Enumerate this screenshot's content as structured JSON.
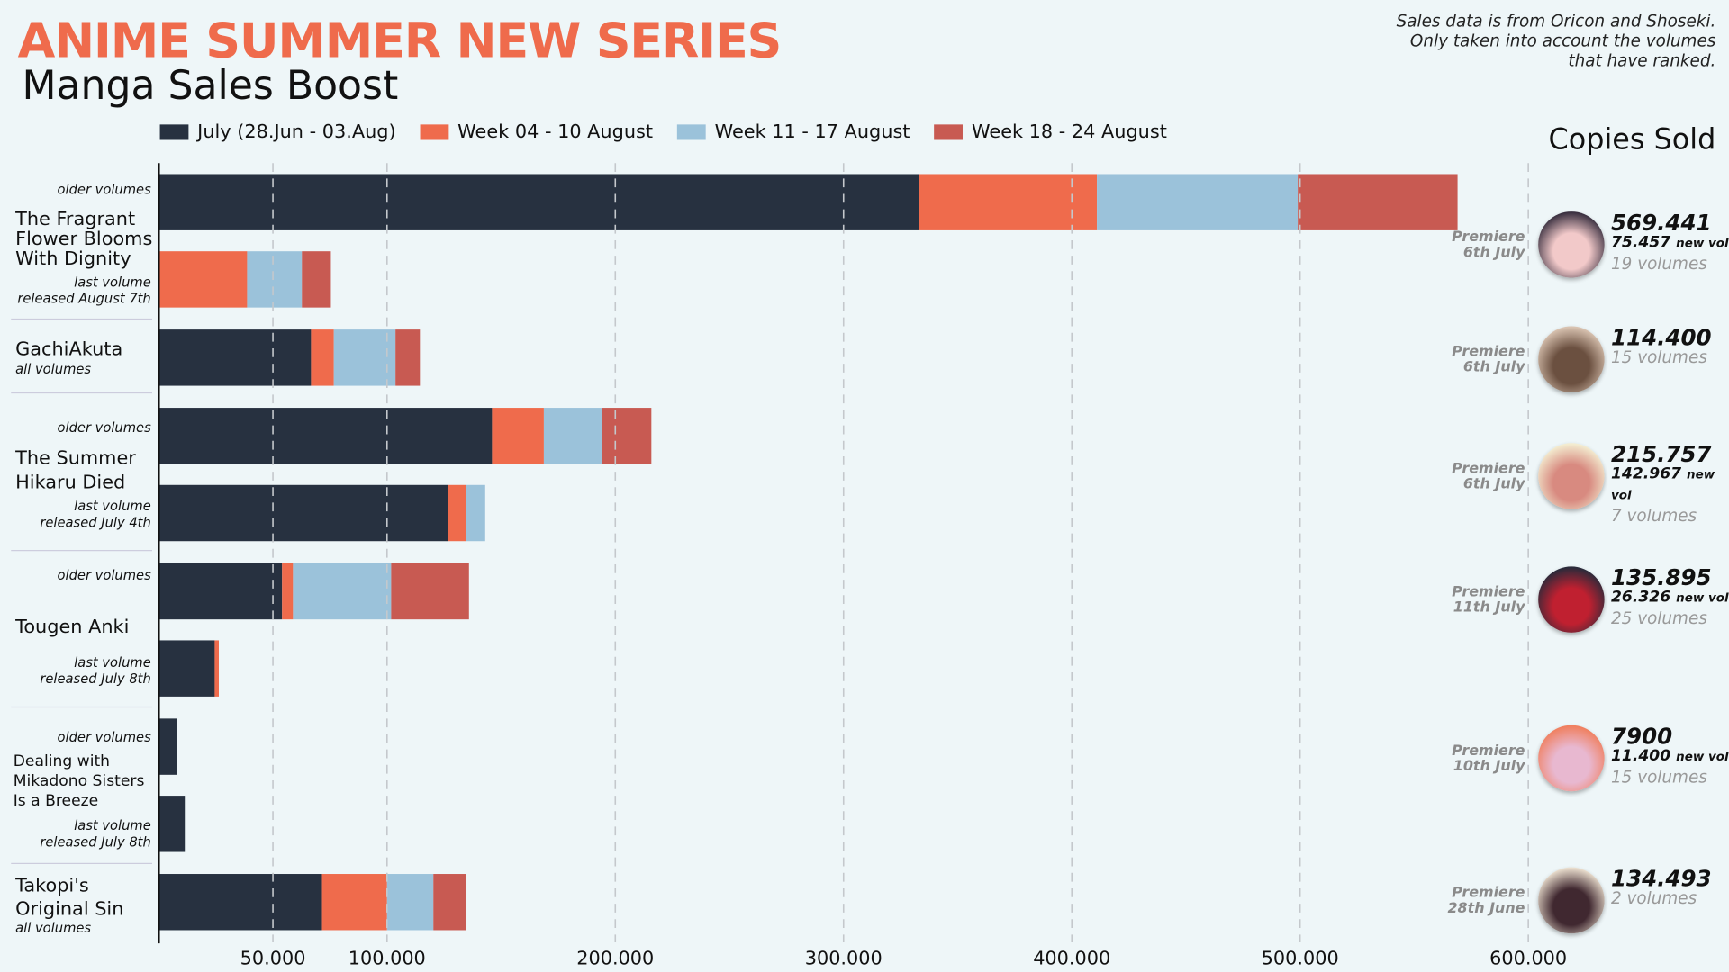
{
  "title": "ANIME SUMMER NEW SERIES",
  "subtitle": "Manga Sales Boost",
  "note": [
    "Sales data is from Oricon and Shoseki.",
    "Only taken into account the volumes",
    "that have ranked."
  ],
  "copies_title": "Copies Sold",
  "new_vol_label": "new vol",
  "chart_data": {
    "type": "bar",
    "orientation": "horizontal",
    "stacked": true,
    "xlim": [
      0,
      600000
    ],
    "ticks": [
      50000,
      100000,
      200000,
      300000,
      400000,
      500000,
      600000
    ],
    "tick_labels": [
      "50.000",
      "100.000",
      "200.000",
      "300.000",
      "400.000",
      "500.000",
      "600.000"
    ],
    "legend": [
      {
        "name": "July (28.Jun - 03.Aug)",
        "color": "#273140"
      },
      {
        "name": "Week 04 - 10 August",
        "color": "#ef6b4c"
      },
      {
        "name": "Week 11 - 17 August",
        "color": "#9bc2da"
      },
      {
        "name": "Week 18 - 24 August",
        "color": "#c85a52"
      }
    ],
    "bars": [
      {
        "series": "The Fragrant Flower Blooms With Dignity",
        "label": "older volumes",
        "values": [
          333000,
          78000,
          88000,
          70000
        ]
      },
      {
        "series": "The Fragrant Flower Blooms With Dignity",
        "label": "last volume released August 7th",
        "values": [
          0,
          38700,
          24000,
          12700
        ]
      },
      {
        "series": "GachiAkuta",
        "label": "all volumes",
        "values": [
          66700,
          10000,
          27000,
          10700
        ]
      },
      {
        "series": "The Summer Hikaru Died",
        "label": "older volumes",
        "values": [
          146000,
          22700,
          25600,
          21500
        ]
      },
      {
        "series": "The Summer Hikaru Died",
        "label": "last volume released July 4th",
        "values": [
          126600,
          8200,
          8200,
          0
        ]
      },
      {
        "series": "Tougen Anki",
        "label": "older volumes",
        "values": [
          54000,
          4800,
          43000,
          34100
        ]
      },
      {
        "series": "Tougen Anki",
        "label": "last volume released July 8th",
        "values": [
          24500,
          1800,
          0,
          0
        ]
      },
      {
        "series": "Dealing with Mikadono Sisters Is a Breeze",
        "label": "older volumes",
        "values": [
          7900,
          0,
          0,
          0
        ]
      },
      {
        "series": "Dealing with Mikadono Sisters Is a Breeze",
        "label": "last volume released July 8th",
        "values": [
          11400,
          0,
          0,
          0
        ]
      },
      {
        "series": "Takopi's Original Sin",
        "label": "all volumes",
        "values": [
          71500,
          28500,
          20300,
          14200
        ]
      }
    ]
  },
  "rows": [
    {
      "name": "The Fragrant Flower Blooms With Dignity",
      "premiere": [
        "Premiere",
        "6th July"
      ],
      "total": "569.441",
      "new_vol": "75.457",
      "volumes": "19 volumes",
      "avatar": [
        "#3a3040",
        "#f2c9c9"
      ]
    },
    {
      "name": "GachiAkuta",
      "premiere": [
        "Premiere",
        "6th July"
      ],
      "total": "114.400",
      "volumes": "15 volumes",
      "avatar": [
        "#d8c2b0",
        "#6b5040"
      ]
    },
    {
      "name": "The Summer Hikaru Died",
      "premiere": [
        "Premiere",
        "6th July"
      ],
      "total": "215.757",
      "new_vol": "142.967",
      "volumes": "7 volumes",
      "avatar": [
        "#f3ecd0",
        "#d88a80"
      ]
    },
    {
      "name": "Tougen Anki",
      "premiere": [
        "Premiere",
        "11th July"
      ],
      "total": "135.895",
      "new_vol": "26.326",
      "volumes": "25 volumes",
      "avatar": [
        "#2a2a3a",
        "#c02030"
      ]
    },
    {
      "name": "Dealing with Mikadono Sisters Is a Breeze",
      "premiere": [
        "Premiere",
        "10th July"
      ],
      "total": "7900",
      "new_vol": "11.400",
      "volumes": "15 volumes",
      "avatar": [
        "#f08060",
        "#e8b8d0"
      ]
    },
    {
      "name": "Takopi's Original Sin",
      "premiere": [
        "Premiere",
        "28th June"
      ],
      "total": "134.493",
      "volumes": "2 volumes",
      "avatar": [
        "#e8dccc",
        "#402830"
      ]
    }
  ],
  "labels": {
    "older": "older volumes",
    "all": "all volumes",
    "fragrant_last": [
      "last volume",
      "released August 7th"
    ],
    "summer_last": [
      "last volume",
      "released July 4th"
    ],
    "tougen_last": [
      "last volume",
      "released July 8th"
    ],
    "dealing_last": [
      "last volume",
      "released July 8th"
    ],
    "fragrant_name": [
      "The Fragrant",
      "Flower Blooms",
      "With Dignity"
    ],
    "summer_name": [
      "The Summer",
      "Hikaru Died"
    ],
    "dealing_name": [
      "Dealing with",
      "Mikadono Sisters",
      "Is a Breeze"
    ],
    "takopi_name": [
      "Takopi's",
      "Original Sin"
    ]
  }
}
